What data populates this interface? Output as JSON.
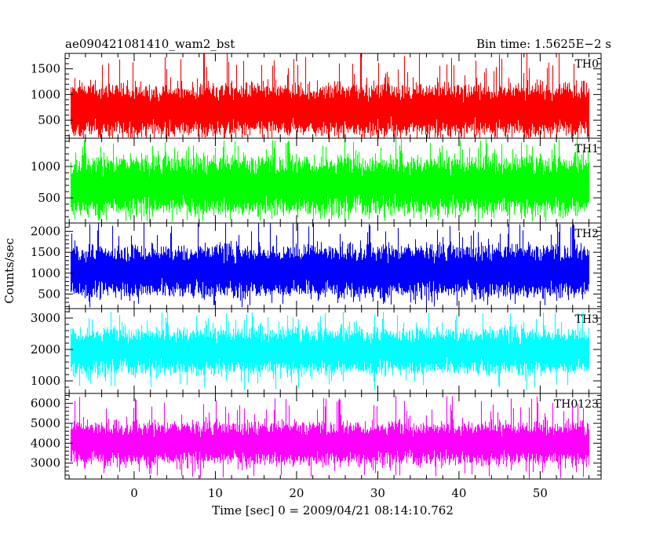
{
  "header": {
    "title": "ae090421081410_wam2_bst",
    "bin_time": "Bin time: 1.5625E−2 s"
  },
  "chart_data": {
    "type": "line",
    "xlabel": "Time [sec] 0 = 2009/04/21 08:14:10.762",
    "ylabel": "Counts/sec",
    "x_range": [
      -8.5,
      57.5
    ],
    "x_data_range": [
      -7.8,
      56.0
    ],
    "x_ticks": [
      0,
      10,
      20,
      30,
      40,
      50
    ],
    "panels": [
      {
        "name": "TH0",
        "color": "#ff0000",
        "ylim": [
          150,
          1800
        ],
        "yticks": [
          500,
          1000,
          1500
        ],
        "center": 700,
        "spread": 260,
        "peak": 1950,
        "floor": 100
      },
      {
        "name": "TH1",
        "color": "#00ff00",
        "ylim": [
          100,
          1450
        ],
        "yticks": [
          500,
          1000
        ],
        "center": 700,
        "spread": 240,
        "peak": 1450,
        "floor": 100
      },
      {
        "name": "TH2",
        "color": "#0000ff",
        "ylim": [
          150,
          2200
        ],
        "yticks": [
          500,
          1000,
          1500,
          2000
        ],
        "center": 1050,
        "spread": 320,
        "peak": 2250,
        "floor": 180
      },
      {
        "name": "TH3",
        "color": "#00ffff",
        "ylim": [
          600,
          3300
        ],
        "yticks": [
          1000,
          2000,
          3000
        ],
        "center": 1950,
        "spread": 380,
        "peak": 3200,
        "floor": 700
      },
      {
        "name": "TH0123",
        "color": "#ff00ff",
        "ylim": [
          2200,
          6500
        ],
        "yticks": [
          3000,
          4000,
          5000,
          6000
        ],
        "center": 4000,
        "spread": 550,
        "peak": 6400,
        "floor": 2200
      }
    ]
  }
}
